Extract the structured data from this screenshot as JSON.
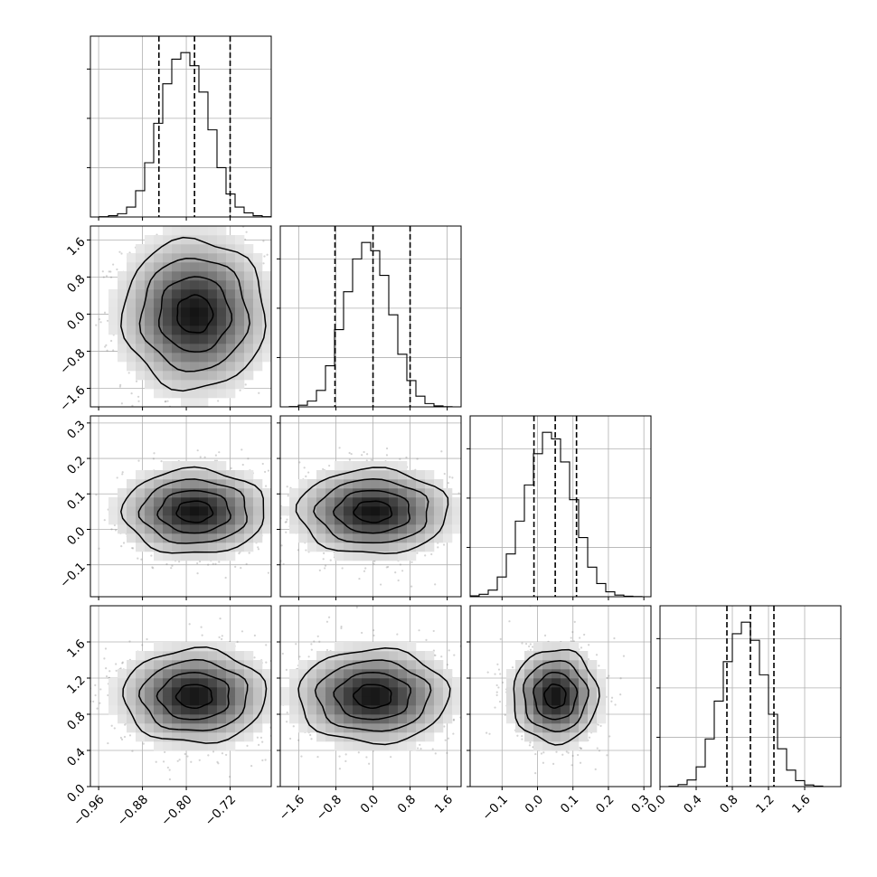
{
  "chart_data": {
    "type": "corner",
    "grid": true,
    "parameters": [
      {
        "index": 0,
        "range": [
          -0.975,
          -0.645
        ],
        "ticks": [
          -0.96,
          -0.88,
          -0.8,
          -0.72
        ],
        "tick_labels": [
          "−0.96",
          "−0.88",
          "−0.80",
          "−0.72"
        ],
        "quantiles": [
          -0.85,
          -0.785,
          -0.72
        ],
        "histogram": {
          "edges": [
            -0.975,
            -0.9585,
            -0.942,
            -0.9255,
            -0.909,
            -0.8925,
            -0.876,
            -0.8595,
            -0.843,
            -0.8265,
            -0.81,
            -0.7935,
            -0.777,
            -0.7605,
            -0.744,
            -0.7275,
            -0.711,
            -0.6945,
            -0.678,
            -0.6615,
            -0.645
          ],
          "counts": [
            0,
            2,
            8,
            20,
            60,
            160,
            330,
            570,
            810,
            960,
            1000,
            920,
            760,
            530,
            300,
            140,
            60,
            25,
            8,
            2
          ]
        }
      },
      {
        "index": 1,
        "range": [
          -2.0,
          1.9
        ],
        "ticks": [
          -1.6,
          -0.8,
          0.0,
          0.8,
          1.6
        ],
        "tick_labels": [
          "−1.6",
          "−0.8",
          "0.0",
          "0.8",
          "1.6"
        ],
        "quantiles": [
          -0.82,
          0.0,
          0.8
        ],
        "histogram": {
          "edges": [
            -2.0,
            -1.805,
            -1.61,
            -1.415,
            -1.22,
            -1.025,
            -0.83,
            -0.635,
            -0.44,
            -0.245,
            -0.05,
            0.145,
            0.34,
            0.535,
            0.73,
            0.925,
            1.12,
            1.315,
            1.51,
            1.705,
            1.9
          ],
          "counts": [
            0,
            2,
            10,
            35,
            100,
            250,
            470,
            700,
            900,
            1000,
            950,
            800,
            560,
            320,
            160,
            65,
            20,
            6,
            1,
            0
          ]
        }
      },
      {
        "index": 2,
        "range": [
          -0.19,
          0.32
        ],
        "ticks": [
          -0.1,
          0.0,
          0.1,
          0.2,
          0.3
        ],
        "tick_labels": [
          "−0.1",
          "0.0",
          "0.1",
          "0.2",
          "0.3"
        ],
        "quantiles": [
          -0.01,
          0.05,
          0.11
        ],
        "histogram": {
          "edges": [
            -0.19,
            -0.1645,
            -0.139,
            -0.1135,
            -0.088,
            -0.0625,
            -0.037,
            -0.0115,
            0.014,
            0.0395,
            0.065,
            0.0905,
            0.116,
            0.1415,
            0.167,
            0.1925,
            0.218,
            0.2435,
            0.269,
            0.2945,
            0.32
          ],
          "counts": [
            5,
            15,
            40,
            120,
            260,
            460,
            680,
            870,
            1000,
            960,
            820,
            590,
            360,
            180,
            80,
            30,
            10,
            3,
            1,
            0
          ]
        }
      },
      {
        "index": 3,
        "range": [
          0.0,
          2.0
        ],
        "ticks": [
          0.0,
          0.4,
          0.8,
          1.2,
          1.6
        ],
        "tick_labels": [
          "0.0",
          "0.4",
          "0.8",
          "1.2",
          "1.6"
        ],
        "quantiles": [
          0.74,
          1.0,
          1.26
        ],
        "histogram": {
          "edges": [
            0.0,
            0.1,
            0.2,
            0.3,
            0.4,
            0.5,
            0.6,
            0.7,
            0.8,
            0.9,
            1.0,
            1.1,
            1.2,
            1.3,
            1.4,
            1.5,
            1.6,
            1.7,
            1.8,
            1.9,
            2.0
          ],
          "counts": [
            0,
            2,
            12,
            40,
            120,
            290,
            520,
            760,
            930,
            1000,
            890,
            680,
            440,
            230,
            100,
            36,
            10,
            3,
            0,
            0
          ]
        }
      }
    ]
  }
}
